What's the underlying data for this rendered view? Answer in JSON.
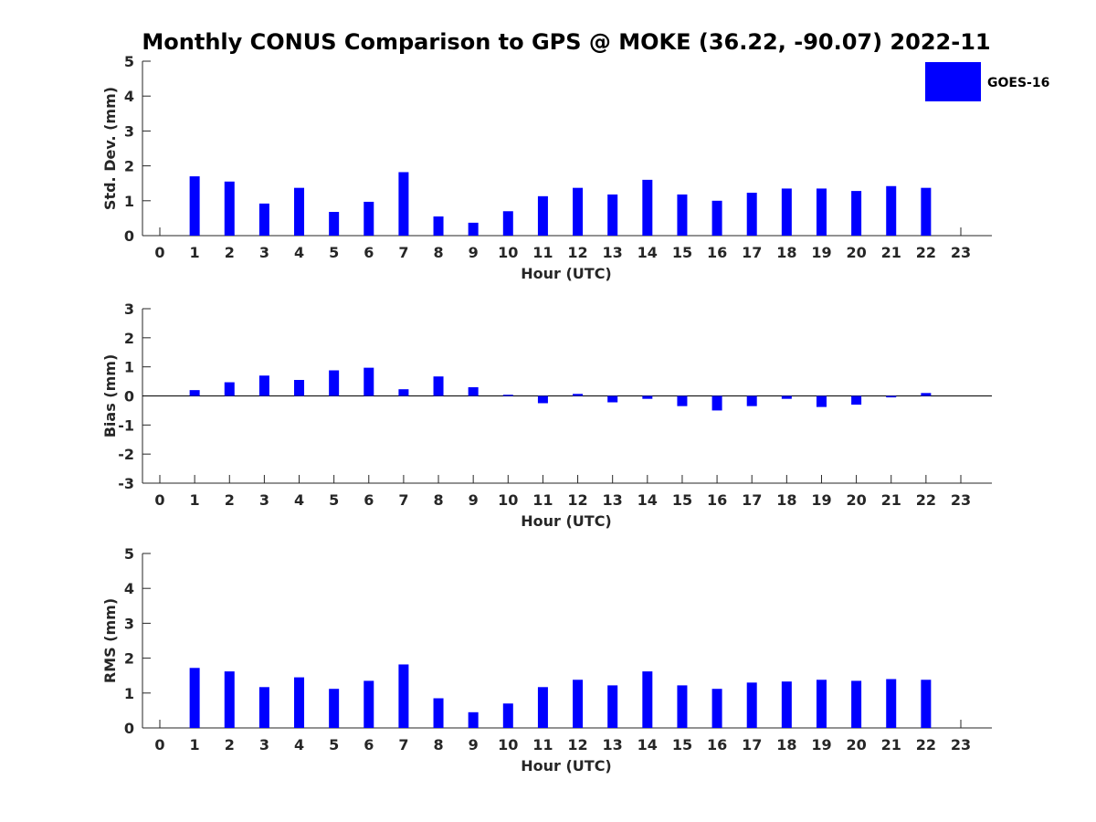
{
  "title": "Monthly CONUS Comparison to GPS @ MOKE (36.22, -90.07) 2022-11",
  "legend": {
    "label": "GOES-16",
    "color": "#0000ff"
  },
  "chart_data": [
    {
      "type": "bar",
      "xlabel": "Hour (UTC)",
      "ylabel": "Std. Dev. (mm)",
      "ylim": [
        0,
        5
      ],
      "yticks": [
        0,
        1,
        2,
        3,
        4,
        5
      ],
      "categories": [
        "0",
        "1",
        "2",
        "3",
        "4",
        "5",
        "6",
        "7",
        "8",
        "9",
        "10",
        "11",
        "12",
        "13",
        "14",
        "15",
        "16",
        "17",
        "18",
        "19",
        "20",
        "21",
        "22",
        "23"
      ],
      "series": [
        {
          "name": "GOES-16",
          "values": [
            null,
            1.7,
            1.55,
            0.92,
            1.37,
            0.68,
            0.97,
            1.82,
            0.55,
            0.37,
            0.7,
            1.13,
            1.37,
            1.18,
            1.6,
            1.18,
            1.0,
            1.23,
            1.35,
            1.35,
            1.28,
            1.42,
            1.37,
            null
          ]
        }
      ]
    },
    {
      "type": "bar",
      "xlabel": "Hour (UTC)",
      "ylabel": "Bias (mm)",
      "ylim": [
        -3,
        3
      ],
      "yticks": [
        -3,
        -2,
        -1,
        0,
        1,
        2,
        3
      ],
      "zero_line": true,
      "categories": [
        "0",
        "1",
        "2",
        "3",
        "4",
        "5",
        "6",
        "7",
        "8",
        "9",
        "10",
        "11",
        "12",
        "13",
        "14",
        "15",
        "16",
        "17",
        "18",
        "19",
        "20",
        "21",
        "22",
        "23"
      ],
      "series": [
        {
          "name": "GOES-16",
          "values": [
            null,
            0.2,
            0.47,
            0.7,
            0.55,
            0.88,
            0.97,
            0.23,
            0.67,
            0.3,
            0.04,
            -0.25,
            0.07,
            -0.22,
            -0.1,
            -0.35,
            -0.5,
            -0.35,
            -0.1,
            -0.38,
            -0.3,
            -0.05,
            0.1,
            null
          ]
        }
      ]
    },
    {
      "type": "bar",
      "xlabel": "Hour (UTC)",
      "ylabel": "RMS (mm)",
      "ylim": [
        0,
        5
      ],
      "yticks": [
        0,
        1,
        2,
        3,
        4,
        5
      ],
      "categories": [
        "0",
        "1",
        "2",
        "3",
        "4",
        "5",
        "6",
        "7",
        "8",
        "9",
        "10",
        "11",
        "12",
        "13",
        "14",
        "15",
        "16",
        "17",
        "18",
        "19",
        "20",
        "21",
        "22",
        "23"
      ],
      "series": [
        {
          "name": "GOES-16",
          "values": [
            null,
            1.72,
            1.62,
            1.17,
            1.45,
            1.12,
            1.35,
            1.82,
            0.85,
            0.45,
            0.7,
            1.17,
            1.38,
            1.22,
            1.62,
            1.22,
            1.12,
            1.3,
            1.33,
            1.38,
            1.35,
            1.4,
            1.38,
            null
          ]
        }
      ]
    }
  ]
}
